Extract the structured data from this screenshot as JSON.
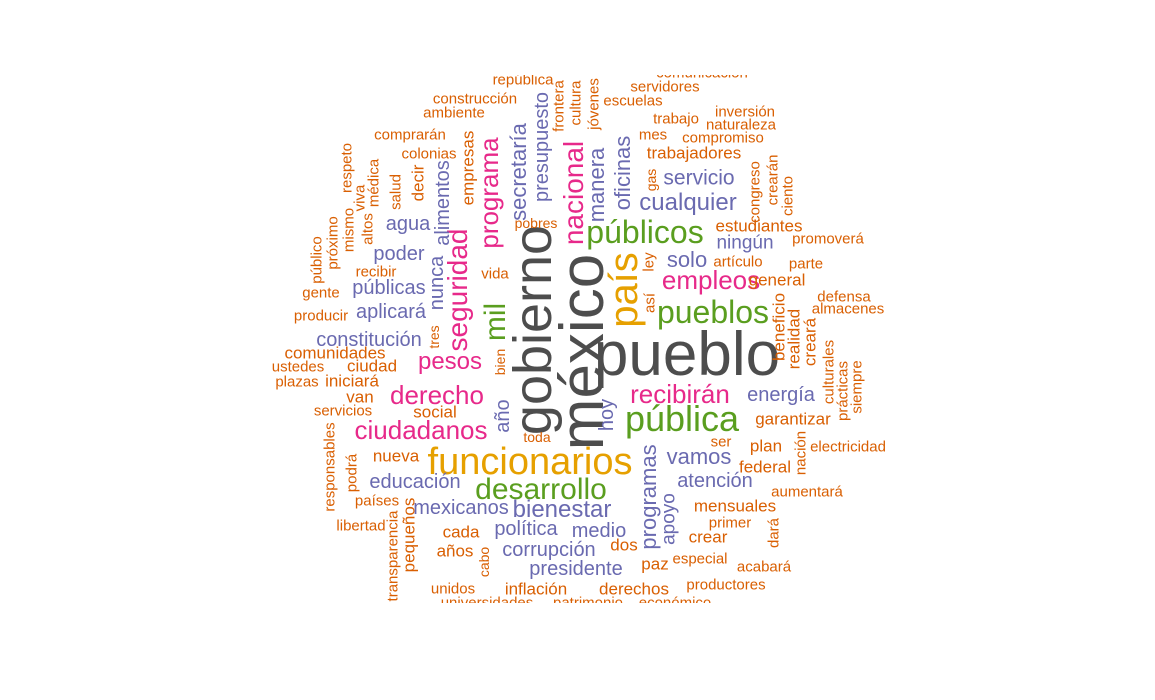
{
  "colors": {
    "tier1": "#4d4d4d",
    "tier2": "#e6a000",
    "tier3": "#5a9e1f",
    "tier4": "#e7298a",
    "tier5": "#6a6ab0",
    "tier6": "#d95f02"
  },
  "words": [
    {
      "text": "pueblo",
      "tier": "tier1"
    },
    {
      "text": "méxico",
      "tier": "tier1"
    },
    {
      "text": "gobierno",
      "tier": "tier1"
    },
    {
      "text": "funcionarios",
      "tier": "tier2"
    },
    {
      "text": "país",
      "tier": "tier2"
    },
    {
      "text": "pública",
      "tier": "tier3"
    },
    {
      "text": "desarrollo",
      "tier": "tier3"
    },
    {
      "text": "públicos",
      "tier": "tier3"
    },
    {
      "text": "pueblos",
      "tier": "tier3"
    },
    {
      "text": "mil",
      "tier": "tier3"
    },
    {
      "text": "nacional",
      "tier": "tier4"
    },
    {
      "text": "seguridad",
      "tier": "tier4"
    },
    {
      "text": "programa",
      "tier": "tier4"
    },
    {
      "text": "empleos",
      "tier": "tier4"
    },
    {
      "text": "recibirán",
      "tier": "tier4"
    },
    {
      "text": "derecho",
      "tier": "tier4"
    },
    {
      "text": "ciudadanos",
      "tier": "tier4"
    },
    {
      "text": "pesos",
      "tier": "tier4"
    },
    {
      "text": "cualquier",
      "tier": "tier5"
    },
    {
      "text": "bienestar",
      "tier": "tier5"
    },
    {
      "text": "vamos",
      "tier": "tier5"
    },
    {
      "text": "oficinas",
      "tier": "tier5"
    },
    {
      "text": "manera",
      "tier": "tier5"
    },
    {
      "text": "secretaría",
      "tier": "tier5"
    },
    {
      "text": "presupuesto",
      "tier": "tier5"
    },
    {
      "text": "programas",
      "tier": "tier5"
    },
    {
      "text": "servicio",
      "tier": "tier5"
    },
    {
      "text": "solo",
      "tier": "tier5"
    },
    {
      "text": "ningún",
      "tier": "tier5"
    },
    {
      "text": "energía",
      "tier": "tier5"
    },
    {
      "text": "atención",
      "tier": "tier5"
    },
    {
      "text": "educación",
      "tier": "tier5"
    },
    {
      "text": "mexicanos",
      "tier": "tier5"
    },
    {
      "text": "política",
      "tier": "tier5"
    },
    {
      "text": "medio",
      "tier": "tier5"
    },
    {
      "text": "corrupción",
      "tier": "tier5"
    },
    {
      "text": "presidente",
      "tier": "tier5"
    },
    {
      "text": "constitución",
      "tier": "tier5"
    },
    {
      "text": "públicas",
      "tier": "tier5"
    },
    {
      "text": "aplicará",
      "tier": "tier5"
    },
    {
      "text": "poder",
      "tier": "tier5"
    },
    {
      "text": "agua",
      "tier": "tier5"
    },
    {
      "text": "hoy",
      "tier": "tier5"
    },
    {
      "text": "año",
      "tier": "tier5"
    },
    {
      "text": "apoyo",
      "tier": "tier5"
    },
    {
      "text": "nunca",
      "tier": "tier5"
    },
    {
      "text": "alimentos",
      "tier": "tier5"
    },
    {
      "text": "empresas",
      "tier": "tier6"
    },
    {
      "text": "trabajadores",
      "tier": "tier6"
    },
    {
      "text": "estudiantes",
      "tier": "tier6"
    },
    {
      "text": "general",
      "tier": "tier6"
    },
    {
      "text": "garantizar",
      "tier": "tier6"
    },
    {
      "text": "plan",
      "tier": "tier6"
    },
    {
      "text": "federal",
      "tier": "tier6"
    },
    {
      "text": "mensuales",
      "tier": "tier6"
    },
    {
      "text": "crear",
      "tier": "tier6"
    },
    {
      "text": "paz",
      "tier": "tier6"
    },
    {
      "text": "dos",
      "tier": "tier6"
    },
    {
      "text": "derechos",
      "tier": "tier6"
    },
    {
      "text": "inflación",
      "tier": "tier6"
    },
    {
      "text": "años",
      "tier": "tier6"
    },
    {
      "text": "cada",
      "tier": "tier6"
    },
    {
      "text": "nueva",
      "tier": "tier6"
    },
    {
      "text": "social",
      "tier": "tier6"
    },
    {
      "text": "van",
      "tier": "tier6"
    },
    {
      "text": "iniciará",
      "tier": "tier6"
    },
    {
      "text": "ciudad",
      "tier": "tier6"
    },
    {
      "text": "comunidades",
      "tier": "tier6"
    },
    {
      "text": "decir",
      "tier": "tier6"
    },
    {
      "text": "construcción",
      "tier": "tier6"
    },
    {
      "text": "ambiente",
      "tier": "tier6"
    },
    {
      "text": "comprarán",
      "tier": "tier6"
    },
    {
      "text": "colonias",
      "tier": "tier6"
    },
    {
      "text": "escuelas",
      "tier": "tier6"
    },
    {
      "text": "servidores",
      "tier": "tier6"
    },
    {
      "text": "inversión",
      "tier": "tier6"
    },
    {
      "text": "naturaleza",
      "tier": "tier6"
    },
    {
      "text": "compromiso",
      "tier": "tier6"
    },
    {
      "text": "trabajo",
      "tier": "tier6"
    },
    {
      "text": "mes",
      "tier": "tier6"
    },
    {
      "text": "promoverá",
      "tier": "tier6"
    },
    {
      "text": "parte",
      "tier": "tier6"
    },
    {
      "text": "artículo",
      "tier": "tier6"
    },
    {
      "text": "defensa",
      "tier": "tier6"
    },
    {
      "text": "almacenes",
      "tier": "tier6"
    },
    {
      "text": "electricidad",
      "tier": "tier6"
    },
    {
      "text": "aumentará",
      "tier": "tier6"
    },
    {
      "text": "primer",
      "tier": "tier6"
    },
    {
      "text": "especial",
      "tier": "tier6"
    },
    {
      "text": "acabará",
      "tier": "tier6"
    },
    {
      "text": "productores",
      "tier": "tier6"
    },
    {
      "text": "ser",
      "tier": "tier6"
    },
    {
      "text": "pobres",
      "tier": "tier6"
    },
    {
      "text": "vida",
      "tier": "tier6"
    },
    {
      "text": "recibir",
      "tier": "tier6"
    },
    {
      "text": "gente",
      "tier": "tier6"
    },
    {
      "text": "producir",
      "tier": "tier6"
    },
    {
      "text": "ustedes",
      "tier": "tier6"
    },
    {
      "text": "plazas",
      "tier": "tier6"
    },
    {
      "text": "servicios",
      "tier": "tier6"
    },
    {
      "text": "países",
      "tier": "tier6"
    },
    {
      "text": "libertad",
      "tier": "tier6"
    },
    {
      "text": "unidos",
      "tier": "tier6"
    },
    {
      "text": "toda",
      "tier": "tier6"
    },
    {
      "text": "bien",
      "tier": "tier6"
    },
    {
      "text": "así",
      "tier": "tier6"
    },
    {
      "text": "ley",
      "tier": "tier6"
    },
    {
      "text": "gas",
      "tier": "tier6"
    },
    {
      "text": "salud",
      "tier": "tier6"
    },
    {
      "text": "altos",
      "tier": "tier6"
    },
    {
      "text": "médica",
      "tier": "tier6"
    },
    {
      "text": "viva",
      "tier": "tier6"
    },
    {
      "text": "respeto",
      "tier": "tier6"
    },
    {
      "text": "mismo",
      "tier": "tier6"
    },
    {
      "text": "próximo",
      "tier": "tier6"
    },
    {
      "text": "público",
      "tier": "tier6"
    },
    {
      "text": "tres",
      "tier": "tier6"
    },
    {
      "text": "responsables",
      "tier": "tier6"
    },
    {
      "text": "podrá",
      "tier": "tier6"
    },
    {
      "text": "pequeños",
      "tier": "tier6"
    },
    {
      "text": "transparencia",
      "tier": "tier6"
    },
    {
      "text": "cabo",
      "tier": "tier6"
    },
    {
      "text": "beneficio",
      "tier": "tier6"
    },
    {
      "text": "realidad",
      "tier": "tier6"
    },
    {
      "text": "creará",
      "tier": "tier6"
    },
    {
      "text": "culturales",
      "tier": "tier6"
    },
    {
      "text": "prácticas",
      "tier": "tier6"
    },
    {
      "text": "siempre",
      "tier": "tier6"
    },
    {
      "text": "nación",
      "tier": "tier6"
    },
    {
      "text": "dará",
      "tier": "tier6"
    },
    {
      "text": "congreso",
      "tier": "tier6"
    },
    {
      "text": "crearán",
      "tier": "tier6"
    },
    {
      "text": "ciento",
      "tier": "tier6"
    },
    {
      "text": "república",
      "tier": "tier6"
    },
    {
      "text": "frontera",
      "tier": "tier6"
    },
    {
      "text": "cultura",
      "tier": "tier6"
    },
    {
      "text": "jóvenes",
      "tier": "tier6"
    },
    {
      "text": "comunicación",
      "tier": "tier6"
    },
    {
      "text": "universidades",
      "tier": "tier6"
    },
    {
      "text": "patrimonio",
      "tier": "tier6"
    },
    {
      "text": "económico",
      "tier": "tier6"
    }
  ]
}
